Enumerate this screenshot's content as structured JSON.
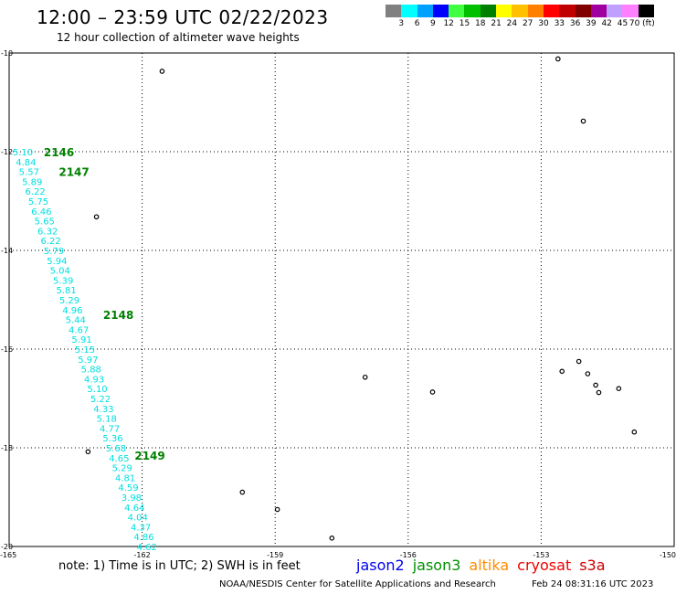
{
  "title": "12:00 – 23:59 UTC 02/22/2023",
  "subtitle": "12 hour collection of altimeter wave heights",
  "legend": {
    "colors": [
      "#808080",
      "#00ffff",
      "#00a0ff",
      "#0000ff",
      "#40ff40",
      "#00c000",
      "#008000",
      "#ffff00",
      "#ffc000",
      "#ff8000",
      "#ff0000",
      "#c00000",
      "#800000",
      "#a000a0",
      "#c0a0ff",
      "#ff80ff",
      "#000000"
    ],
    "labels": [
      "3",
      "6",
      "9",
      "12",
      "15",
      "18",
      "21",
      "24",
      "27",
      "30",
      "33",
      "36",
      "39",
      "42",
      "45",
      "70 (ft)"
    ]
  },
  "axes": {
    "lon_labels": [
      "-165",
      "-162",
      "-159",
      "-156",
      "-153",
      "-150"
    ],
    "lat_labels": [
      "-10",
      "-12",
      "-14",
      "-16",
      "-18",
      "-20"
    ],
    "lon_range": [
      -165,
      -150
    ],
    "lat_range": [
      -20,
      -10
    ]
  },
  "track_color": "#00e0e0",
  "time_color": "#008000",
  "track": {
    "satellite": "jason3",
    "readings": [
      {
        "lon": -164.92,
        "lat": -12.0,
        "swh": "5.10"
      },
      {
        "lon": -164.85,
        "lat": -12.2,
        "swh": "4.84"
      },
      {
        "lon": -164.78,
        "lat": -12.4,
        "swh": "5.57"
      },
      {
        "lon": -164.71,
        "lat": -12.6,
        "swh": "5.89"
      },
      {
        "lon": -164.64,
        "lat": -12.8,
        "swh": "6.22"
      },
      {
        "lon": -164.57,
        "lat": -13.0,
        "swh": "5.75"
      },
      {
        "lon": -164.5,
        "lat": -13.2,
        "swh": "6.46"
      },
      {
        "lon": -164.43,
        "lat": -13.4,
        "swh": "5.65"
      },
      {
        "lon": -164.36,
        "lat": -13.6,
        "swh": "6.32"
      },
      {
        "lon": -164.29,
        "lat": -13.8,
        "swh": "6.22"
      },
      {
        "lon": -164.22,
        "lat": -14.0,
        "swh": "5.79"
      },
      {
        "lon": -164.15,
        "lat": -14.2,
        "swh": "5.94"
      },
      {
        "lon": -164.08,
        "lat": -14.4,
        "swh": "5.04"
      },
      {
        "lon": -164.01,
        "lat": -14.6,
        "swh": "5.39"
      },
      {
        "lon": -163.94,
        "lat": -14.8,
        "swh": "5.81"
      },
      {
        "lon": -163.87,
        "lat": -15.0,
        "swh": "5.29"
      },
      {
        "lon": -163.8,
        "lat": -15.2,
        "swh": "4.96"
      },
      {
        "lon": -163.73,
        "lat": -15.4,
        "swh": "5.44"
      },
      {
        "lon": -163.66,
        "lat": -15.6,
        "swh": "4.67"
      },
      {
        "lon": -163.59,
        "lat": -15.8,
        "swh": "5.91"
      },
      {
        "lon": -163.52,
        "lat": -16.0,
        "swh": "5.15"
      },
      {
        "lon": -163.45,
        "lat": -16.2,
        "swh": "5.97"
      },
      {
        "lon": -163.38,
        "lat": -16.4,
        "swh": "5.88"
      },
      {
        "lon": -163.31,
        "lat": -16.6,
        "swh": "4.93"
      },
      {
        "lon": -163.24,
        "lat": -16.8,
        "swh": "5.10"
      },
      {
        "lon": -163.17,
        "lat": -17.0,
        "swh": "5.22"
      },
      {
        "lon": -163.1,
        "lat": -17.2,
        "swh": "4.33"
      },
      {
        "lon": -163.03,
        "lat": -17.4,
        "swh": "5.18"
      },
      {
        "lon": -162.96,
        "lat": -17.6,
        "swh": "4.77"
      },
      {
        "lon": -162.89,
        "lat": -17.8,
        "swh": "5.36"
      },
      {
        "lon": -162.82,
        "lat": -18.0,
        "swh": "5.68"
      },
      {
        "lon": -162.75,
        "lat": -18.2,
        "swh": "4.65"
      },
      {
        "lon": -162.68,
        "lat": -18.4,
        "swh": "5.29"
      },
      {
        "lon": -162.61,
        "lat": -18.6,
        "swh": "4.81"
      },
      {
        "lon": -162.54,
        "lat": -18.8,
        "swh": "4.59"
      },
      {
        "lon": -162.47,
        "lat": -19.0,
        "swh": "3.98"
      },
      {
        "lon": -162.4,
        "lat": -19.2,
        "swh": "4.64"
      },
      {
        "lon": -162.33,
        "lat": -19.4,
        "swh": "4.04"
      },
      {
        "lon": -162.26,
        "lat": -19.6,
        "swh": "4.37"
      },
      {
        "lon": -162.19,
        "lat": -19.8,
        "swh": "4.86"
      },
      {
        "lon": -162.12,
        "lat": -20.0,
        "swh": "4.62"
      }
    ],
    "time_labels": [
      {
        "lon": -164.22,
        "lat": -12.0,
        "text": "2146"
      },
      {
        "lon": -163.88,
        "lat": -12.4,
        "text": "2147"
      },
      {
        "lon": -162.88,
        "lat": -15.3,
        "text": "2148"
      },
      {
        "lon": -162.17,
        "lat": -18.15,
        "text": "2149"
      }
    ]
  },
  "islands": [
    {
      "lon": -161.55,
      "lat": -10.37
    },
    {
      "lon": -163.03,
      "lat": -13.32
    },
    {
      "lon": -163.22,
      "lat": -18.08
    },
    {
      "lon": -159.74,
      "lat": -18.9
    },
    {
      "lon": -158.95,
      "lat": -19.25
    },
    {
      "lon": -157.72,
      "lat": -19.83
    },
    {
      "lon": -156.97,
      "lat": -16.57
    },
    {
      "lon": -155.45,
      "lat": -16.87
    },
    {
      "lon": -152.53,
      "lat": -16.45
    },
    {
      "lon": -152.15,
      "lat": -16.25
    },
    {
      "lon": -151.95,
      "lat": -16.5
    },
    {
      "lon": -151.77,
      "lat": -16.73
    },
    {
      "lon": -151.7,
      "lat": -16.88
    },
    {
      "lon": -151.25,
      "lat": -16.8
    },
    {
      "lon": -150.9,
      "lat": -17.68
    },
    {
      "lon": -152.05,
      "lat": -11.38
    },
    {
      "lon": -152.62,
      "lat": -10.12
    }
  ],
  "note": "note: 1) Time is in UTC; 2) SWH is in feet",
  "satellites": [
    {
      "name": "jason2",
      "color": "#0000ee"
    },
    {
      "name": "jason3",
      "color": "#009000"
    },
    {
      "name": "altika",
      "color": "#ff8c00"
    },
    {
      "name": "cryosat",
      "color": "#ee0000"
    },
    {
      "name": "s3a",
      "color": "#cc0000"
    }
  ],
  "footer_left": "NOAA/NESDIS Center for Satellite Applications and Research",
  "footer_right": "Feb 24 08:31:16 UTC 2023"
}
